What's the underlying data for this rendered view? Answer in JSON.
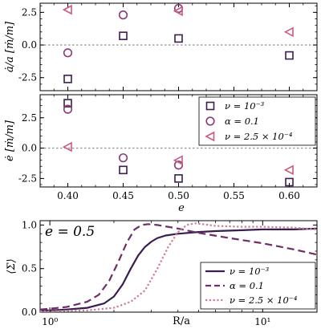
{
  "chart_data": [
    {
      "type": "scatter",
      "ylabel": "ȧ/a [ṁ/m]",
      "xlim": [
        0.375,
        0.625
      ],
      "ylim": [
        -3.5,
        3.2
      ],
      "yticks": [
        "-2.5",
        "0.0",
        "2.5"
      ],
      "ytick_values": [
        -2.5,
        0,
        2.5
      ],
      "zero_line": true,
      "series": [
        {
          "name": "ν = 10⁻³",
          "marker": "square",
          "color": "#3b1d4f",
          "x": [
            0.4,
            0.45,
            0.5,
            0.6
          ],
          "y": [
            -2.6,
            0.7,
            0.5,
            -0.8
          ]
        },
        {
          "name": "α = 0.1",
          "marker": "circle",
          "color": "#8a3a78",
          "x": [
            0.4,
            0.45,
            0.5
          ],
          "y": [
            -0.6,
            2.3,
            2.8
          ]
        },
        {
          "name": "ν = 2.5 × 10⁻⁴",
          "marker": "triangle-left",
          "color": "#cc5a7e",
          "x": [
            0.4,
            0.5,
            0.6
          ],
          "y": [
            2.7,
            2.6,
            1.0
          ]
        }
      ]
    },
    {
      "type": "scatter",
      "xlabel": "e",
      "ylabel": "ė [ṁ/m]",
      "xlim": [
        0.375,
        0.625
      ],
      "ylim": [
        -3.2,
        4.4
      ],
      "xticks": [
        "0.40",
        "0.45",
        "0.50",
        "0.55",
        "0.60"
      ],
      "xtick_values": [
        0.4,
        0.45,
        0.5,
        0.55,
        0.6
      ],
      "yticks": [
        "-2.5",
        "0.0",
        "2.5"
      ],
      "ytick_values": [
        -2.5,
        0,
        2.5
      ],
      "zero_line": true,
      "legend": "upper-right",
      "series": [
        {
          "name": "ν = 10⁻³",
          "marker": "square",
          "color": "#3b1d4f",
          "x": [
            0.4,
            0.45,
            0.5,
            0.6
          ],
          "y": [
            3.7,
            -1.8,
            -2.5,
            -2.8
          ]
        },
        {
          "name": "α = 0.1",
          "marker": "circle",
          "color": "#8a3a78",
          "x": [
            0.4,
            0.45,
            0.5
          ],
          "y": [
            3.2,
            -0.8,
            -1.4
          ]
        },
        {
          "name": "ν = 2.5 × 10⁻⁴",
          "marker": "triangle-left",
          "color": "#cc5a7e",
          "x": [
            0.4,
            0.5,
            0.6
          ],
          "y": [
            0.1,
            -1.0,
            -1.8
          ]
        }
      ]
    },
    {
      "type": "line",
      "annotation": "e = 0.5",
      "xlabel": "R/a",
      "ylabel": "⟨Σ⟩",
      "xscale": "log",
      "xlim": [
        0.9,
        18
      ],
      "ylim": [
        0,
        1.05
      ],
      "xticks": [
        "10⁰",
        "10¹"
      ],
      "xtick_values": [
        1,
        10
      ],
      "yticks": [
        "0.0",
        "0.5",
        "1.0"
      ],
      "ytick_values": [
        0,
        0.5,
        1.0
      ],
      "legend": "lower-right",
      "series": [
        {
          "name": "ν = 10⁻³",
          "style": "solid",
          "color": "#3b1d4f",
          "x": [
            0.9,
            1.0,
            1.2,
            1.5,
            1.8,
            2.0,
            2.2,
            2.4,
            2.6,
            2.8,
            3.0,
            3.2,
            3.5,
            4.0,
            5.0,
            6.0,
            8.0,
            10.0,
            14.0,
            18.0
          ],
          "y": [
            0.02,
            0.02,
            0.03,
            0.05,
            0.1,
            0.18,
            0.32,
            0.5,
            0.65,
            0.75,
            0.81,
            0.85,
            0.88,
            0.9,
            0.92,
            0.93,
            0.94,
            0.95,
            0.95,
            0.96
          ]
        },
        {
          "name": "α = 0.1",
          "style": "dashed",
          "color": "#6e2e68",
          "x": [
            0.9,
            1.0,
            1.2,
            1.5,
            1.7,
            1.9,
            2.1,
            2.3,
            2.5,
            2.7,
            2.9,
            3.2,
            4.0,
            5.0,
            7.0,
            10.0,
            14.0,
            18.0
          ],
          "y": [
            0.03,
            0.04,
            0.06,
            0.12,
            0.2,
            0.36,
            0.58,
            0.8,
            0.95,
            1.0,
            1.01,
            1.0,
            0.96,
            0.91,
            0.85,
            0.79,
            0.72,
            0.66
          ]
        },
        {
          "name": "ν = 2.5 × 10⁻⁴",
          "style": "dotted",
          "color": "#cc7a96",
          "x": [
            0.9,
            1.0,
            1.5,
            2.0,
            2.4,
            2.8,
            3.2,
            3.6,
            4.0,
            4.4,
            4.8,
            5.2,
            6.0,
            8.0,
            10.0,
            14.0,
            18.0
          ],
          "y": [
            0.01,
            0.01,
            0.02,
            0.05,
            0.12,
            0.25,
            0.5,
            0.75,
            0.92,
            1.0,
            1.02,
            1.01,
            0.99,
            0.98,
            0.98,
            0.97,
            0.95
          ]
        }
      ]
    }
  ]
}
